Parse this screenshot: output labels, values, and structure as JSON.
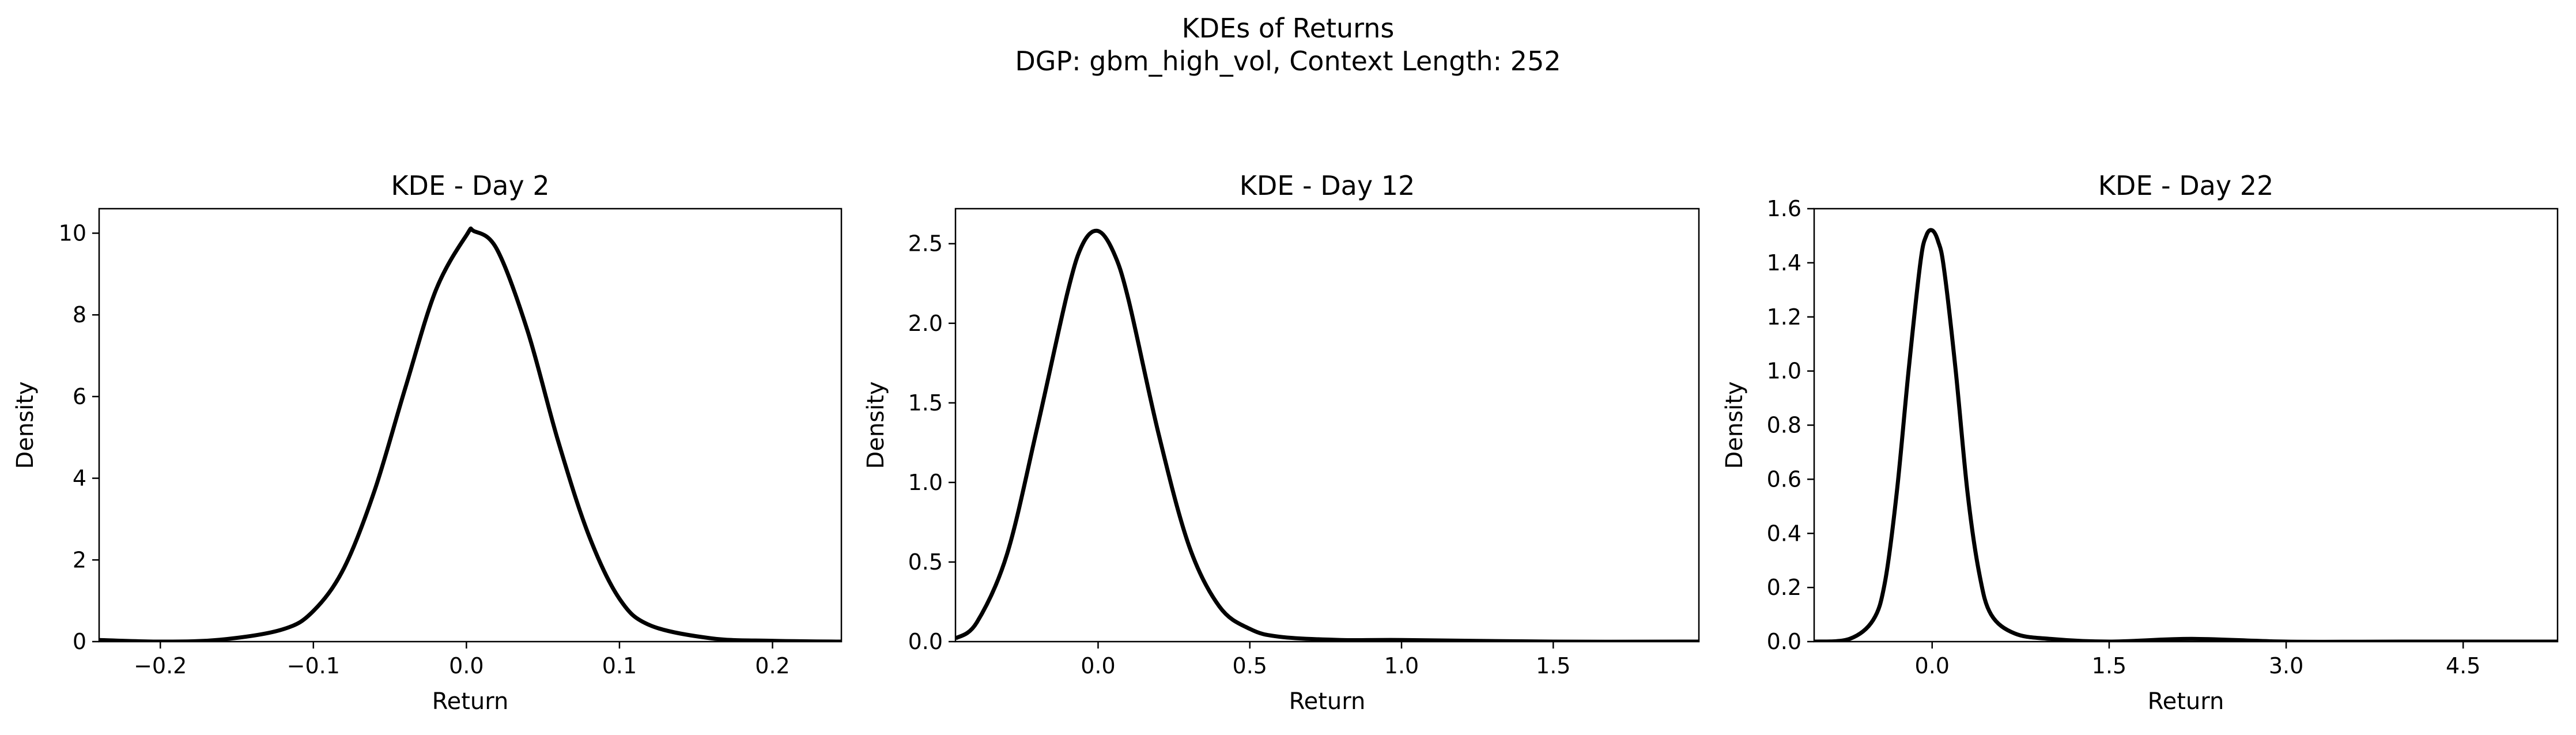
{
  "figure": {
    "suptitle_line1": "KDEs of Returns",
    "suptitle_line2": "DGP: gbm_high_vol, Context Length: 252"
  },
  "colors": {
    "line": "#000000",
    "background": "#ffffff",
    "frame": "#000000"
  },
  "chart_data": [
    {
      "type": "line",
      "title": "KDE - Day 2",
      "xlabel": "Return",
      "ylabel": "Density",
      "xlim": [
        -0.24,
        0.245
      ],
      "ylim": [
        0,
        10.6
      ],
      "xticks": [
        -0.2,
        -0.1,
        0.0,
        0.1,
        0.2
      ],
      "xtick_labels": [
        "−0.2",
        "−0.1",
        "0.0",
        "0.1",
        "0.2"
      ],
      "yticks": [
        0,
        2,
        4,
        6,
        8,
        10
      ],
      "ytick_labels": [
        "0",
        "2",
        "4",
        "6",
        "8",
        "10"
      ],
      "grid": false,
      "series": [
        {
          "x": [
            -0.24,
            -0.2,
            -0.16,
            -0.12,
            -0.1,
            -0.08,
            -0.06,
            -0.04,
            -0.02,
            0.0,
            0.005,
            0.02,
            0.04,
            0.06,
            0.08,
            0.1,
            0.12,
            0.16,
            0.2,
            0.245
          ],
          "y": [
            0.04,
            0.0,
            0.05,
            0.3,
            0.75,
            1.8,
            3.7,
            6.2,
            8.6,
            9.95,
            10.05,
            9.6,
            7.6,
            4.9,
            2.6,
            1.05,
            0.4,
            0.08,
            0.02,
            0.0
          ]
        }
      ]
    },
    {
      "type": "line",
      "title": "KDE - Day 12",
      "xlabel": "Return",
      "ylabel": "Density",
      "xlim": [
        -0.47,
        1.98
      ],
      "ylim": [
        0,
        2.72
      ],
      "xticks": [
        0.0,
        0.5,
        1.0,
        1.5
      ],
      "xtick_labels": [
        "0.0",
        "0.5",
        "1.0",
        "1.5"
      ],
      "yticks": [
        0.0,
        0.5,
        1.0,
        1.5,
        2.0,
        2.5
      ],
      "ytick_labels": [
        "0.0",
        "0.5",
        "1.0",
        "1.5",
        "2.0",
        "2.5"
      ],
      "grid": false,
      "series": [
        {
          "x": [
            -0.47,
            -0.4,
            -0.3,
            -0.2,
            -0.1,
            -0.05,
            0.0,
            0.05,
            0.1,
            0.2,
            0.3,
            0.4,
            0.5,
            0.6,
            0.8,
            1.0,
            1.5,
            1.98
          ],
          "y": [
            0.02,
            0.12,
            0.55,
            1.35,
            2.2,
            2.5,
            2.58,
            2.45,
            2.15,
            1.3,
            0.6,
            0.22,
            0.08,
            0.03,
            0.01,
            0.01,
            0.0,
            0.0
          ]
        }
      ]
    },
    {
      "type": "line",
      "title": "KDE - Day 22",
      "xlabel": "Return",
      "ylabel": "Density",
      "xlim": [
        -1.0,
        5.3
      ],
      "ylim": [
        0,
        1.6
      ],
      "xticks": [
        0.0,
        1.5,
        3.0,
        4.5
      ],
      "xtick_labels": [
        "0.0",
        "1.5",
        "3.0",
        "4.5"
      ],
      "yticks": [
        0.0,
        0.2,
        0.4,
        0.6,
        0.8,
        1.0,
        1.2,
        1.4,
        1.6
      ],
      "ytick_labels": [
        "0.0",
        "0.2",
        "0.4",
        "0.6",
        "0.8",
        "1.0",
        "1.2",
        "1.4",
        "1.6"
      ],
      "grid": false,
      "series": [
        {
          "x": [
            -1.0,
            -0.7,
            -0.5,
            -0.4,
            -0.3,
            -0.2,
            -0.1,
            -0.05,
            0.0,
            0.05,
            0.1,
            0.2,
            0.3,
            0.4,
            0.5,
            0.7,
            1.0,
            1.5,
            2.2,
            3.0,
            4.0,
            5.3
          ],
          "y": [
            0.0,
            0.01,
            0.08,
            0.22,
            0.55,
            1.0,
            1.4,
            1.5,
            1.52,
            1.48,
            1.38,
            1.0,
            0.55,
            0.25,
            0.1,
            0.03,
            0.01,
            0.0,
            0.01,
            0.0,
            0.0,
            0.0
          ]
        }
      ]
    }
  ]
}
